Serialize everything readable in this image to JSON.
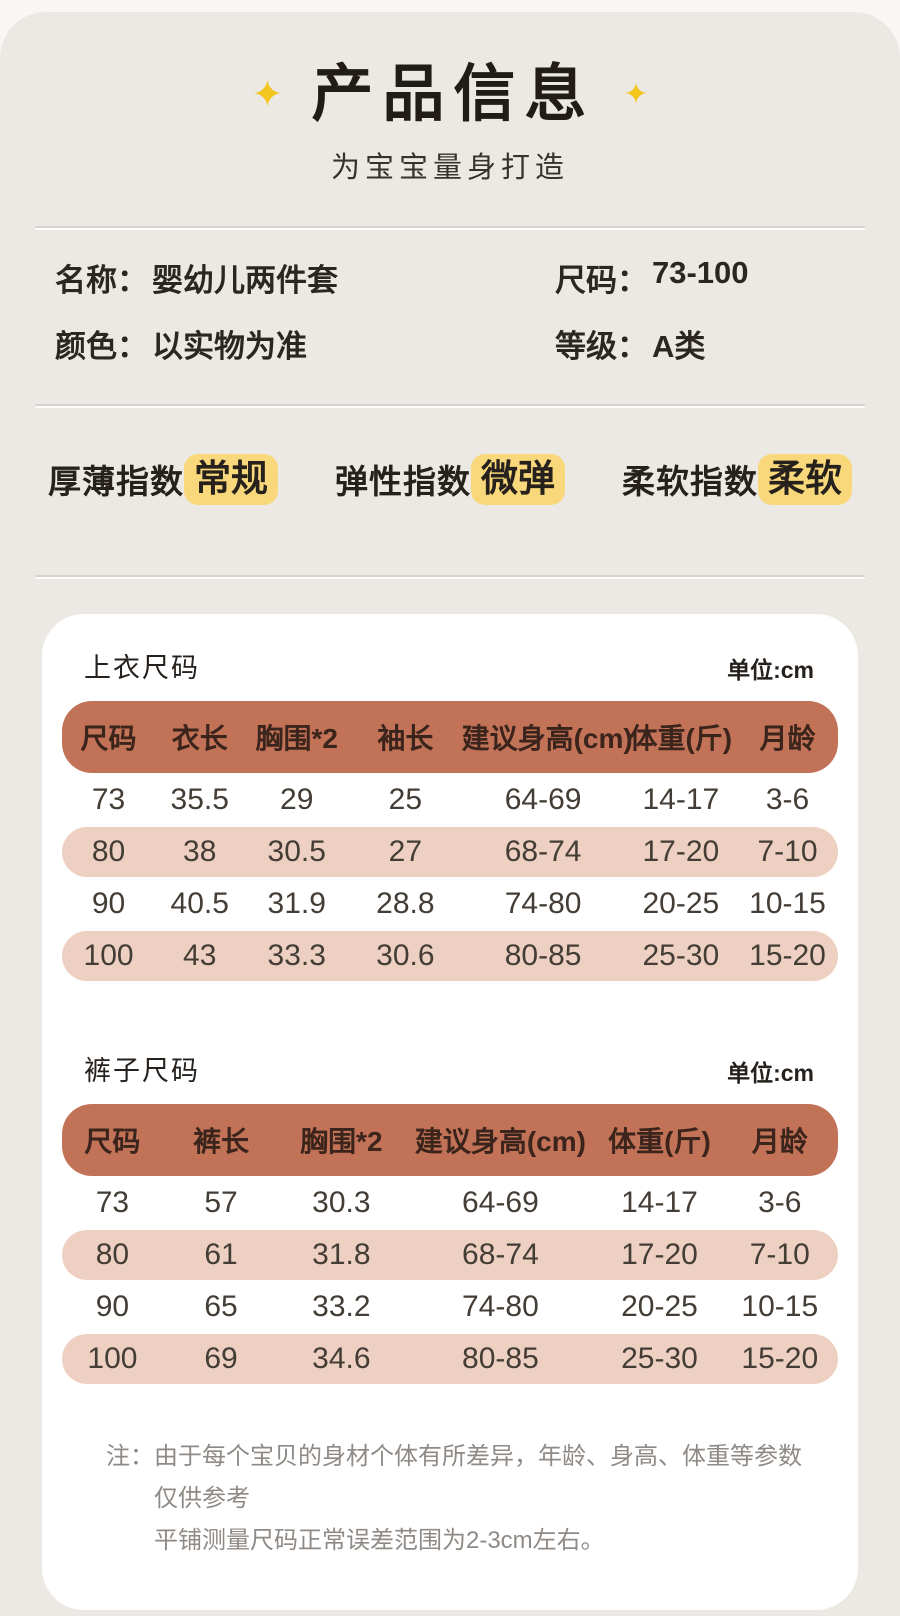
{
  "colors": {
    "page_bg": "#f8f7f6",
    "panel_bg": "#ece9e4",
    "sparkle_yellow": "#f3c51f",
    "chip_yellow": "#f8d87a",
    "card_bg": "#ffffff",
    "table_header_bg": "#c17257",
    "table_alt_row_bg": "#eed0c2",
    "text_dark": "#26211c",
    "note_gray": "#8f8a85"
  },
  "header": {
    "sparkle": "✦",
    "title": "产品信息",
    "subtitle": "为宝宝量身打造"
  },
  "info": {
    "name_label": "名称：",
    "name_value": "婴幼儿两件套",
    "size_label": "尺码：",
    "size_value": "73-100",
    "color_label": "颜色：",
    "color_value": "以实物为准",
    "grade_label": "等级：",
    "grade_value": "A类"
  },
  "indices": [
    {
      "label": "厚薄指数",
      "value": "常规"
    },
    {
      "label": "弹性指数",
      "value": "微弹"
    },
    {
      "label": "柔软指数",
      "value": "柔软"
    }
  ],
  "tables": [
    {
      "title": "上衣尺码",
      "unit": "单位:cm",
      "columns": [
        "尺码",
        "衣长",
        "胸围*2",
        "袖长",
        "建议身高(cm)",
        "体重(斤)",
        "月龄"
      ],
      "rows": [
        [
          "73",
          "35.5",
          "29",
          "25",
          "64-69",
          "14-17",
          "3-6"
        ],
        [
          "80",
          "38",
          "30.5",
          "27",
          "68-74",
          "17-20",
          "7-10"
        ],
        [
          "90",
          "40.5",
          "31.9",
          "28.8",
          "74-80",
          "20-25",
          "10-15"
        ],
        [
          "100",
          "43",
          "33.3",
          "30.6",
          "80-85",
          "25-30",
          "15-20"
        ]
      ]
    },
    {
      "title": "裤子尺码",
      "unit": "单位:cm",
      "columns": [
        "尺码",
        "裤长",
        "胸围*2",
        "建议身高(cm)",
        "体重(斤)",
        "月龄"
      ],
      "rows": [
        [
          "73",
          "57",
          "30.3",
          "64-69",
          "14-17",
          "3-6"
        ],
        [
          "80",
          "61",
          "31.8",
          "68-74",
          "17-20",
          "7-10"
        ],
        [
          "90",
          "65",
          "33.2",
          "74-80",
          "20-25",
          "10-15"
        ],
        [
          "100",
          "69",
          "34.6",
          "80-85",
          "25-30",
          "15-20"
        ]
      ]
    }
  ],
  "note": {
    "prefix": "注：",
    "line1": "由于每个宝贝的身材个体有所差异，年龄、身高、体重等参数仅供参考",
    "line2": "平铺测量尺码正常误差范围为2-3cm左右。"
  }
}
